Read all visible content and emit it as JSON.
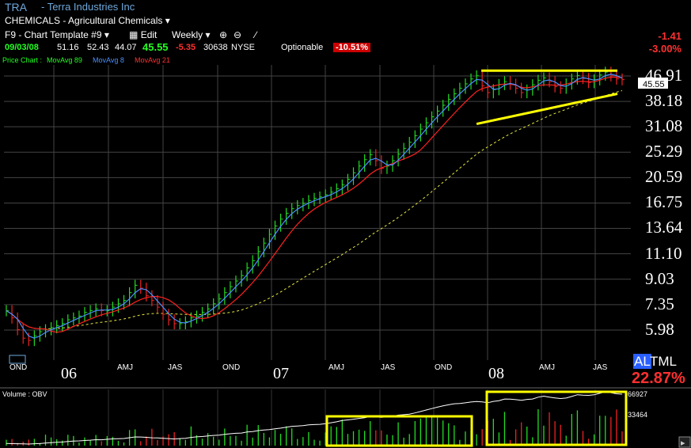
{
  "header": {
    "ticker": "TRA",
    "company": "- Terra Industries Inc",
    "industry": "CHEMICALS - Agricultural Chemicals",
    "template": "F9 - Chart Template #9",
    "edit_label": "Edit",
    "period": "Weekly",
    "date": "09/03/08",
    "open": "51.16",
    "high": "52.43",
    "low": "44.07",
    "close": "45.55",
    "change": "-5.35",
    "volume": "30638",
    "exchange": "NYSE",
    "optionable": "Optionable",
    "pct_badge": "-10.51%",
    "right_change": "-1.41",
    "right_pct": "-3.00%",
    "legend_price": "Price Chart :",
    "legend_ma89": "MovAvg 89",
    "legend_ma8": "MovAvg 8",
    "legend_ma21": "MovAvg 21",
    "al": "AL",
    "tml": "TML",
    "tml_pct": "22.87%"
  },
  "colors": {
    "background": "#000000",
    "up_bar": "#22dd22",
    "down_bar": "#ee2222",
    "ma8": "#4a90ff",
    "ma21": "#ff2020",
    "ma89": "#e8e840",
    "annotation": "#ffff00",
    "obv": "#ffffff",
    "ticker": "#6fa8dc"
  },
  "chart_data": {
    "type": "line",
    "scale": "log",
    "y_ticks": [
      "46.91",
      "38.18",
      "31.08",
      "25.29",
      "20.59",
      "16.75",
      "13.64",
      "11.10",
      "9.03",
      "7.35",
      "5.98"
    ],
    "current_price_label": "45.55",
    "x_months": [
      "OND",
      "AMJ",
      "JAS",
      "OND",
      "AMJ",
      "JAS",
      "OND",
      "AMJ",
      "JAS"
    ],
    "x_years": [
      "06",
      "07",
      "08"
    ],
    "grid": true,
    "price_series_weekly_approx": [
      7.0,
      6.6,
      6.0,
      5.6,
      5.5,
      5.7,
      5.9,
      6.0,
      6.1,
      6.2,
      6.3,
      6.5,
      6.6,
      6.7,
      6.9,
      7.0,
      7.1,
      7.0,
      7.0,
      7.2,
      7.4,
      7.6,
      8.1,
      8.6,
      8.4,
      7.9,
      7.6,
      7.2,
      6.8,
      6.5,
      6.3,
      6.3,
      6.4,
      6.6,
      6.7,
      6.9,
      7.1,
      7.4,
      7.7,
      8.1,
      8.5,
      8.9,
      9.3,
      9.9,
      10.5,
      11.3,
      12.1,
      13.0,
      13.9,
      14.7,
      15.4,
      16.0,
      16.4,
      16.7,
      17.1,
      17.4,
      17.6,
      17.9,
      18.3,
      18.8,
      19.4,
      20.3,
      21.4,
      22.6,
      23.8,
      24.8,
      23.6,
      22.2,
      22.6,
      23.6,
      24.9,
      26.1,
      27.4,
      28.9,
      30.5,
      32.1,
      33.7,
      35.3,
      37.0,
      38.8,
      40.6,
      42.5,
      44.0,
      45.8,
      47.0,
      43.3,
      41.0,
      42.0,
      43.8,
      44.8,
      43.9,
      42.5,
      41.0,
      41.9,
      43.7,
      45.3,
      46.2,
      44.8,
      43.0,
      42.5,
      44.0,
      45.8,
      47.1,
      46.0,
      44.5,
      45.5,
      47.3,
      48.4,
      47.0,
      45.8,
      45.55
    ],
    "series": [
      {
        "name": "MovAvg 8",
        "color": "#4a90ff"
      },
      {
        "name": "MovAvg 21",
        "color": "#ff2020"
      },
      {
        "name": "MovAvg 89",
        "color": "#e8e840"
      }
    ],
    "annotations": [
      {
        "type": "resistance",
        "price": 49.0
      },
      {
        "type": "rising-support",
        "from": 31.8,
        "to": 40.6
      }
    ],
    "volume_panel": {
      "label": "Volume : OBV",
      "ticks": [
        "66927",
        "33464"
      ]
    }
  }
}
